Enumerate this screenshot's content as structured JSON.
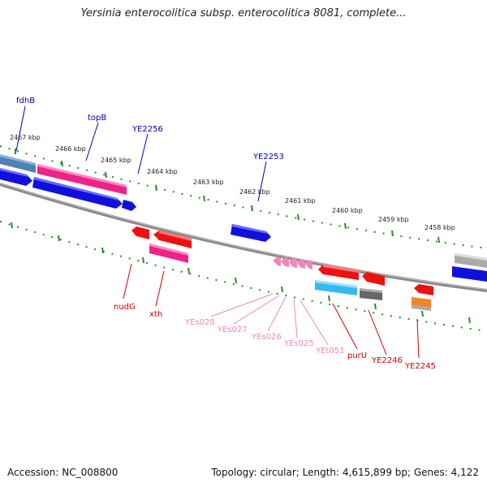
{
  "title": "Yersinia enterocolitica subsp. enterocolitica 8081, complete...",
  "footer": {
    "accession": "Accession: NC_008800",
    "topology": "Topology: circular; Length: 4,615,899 bp; Genes: 4,122"
  },
  "scale_labels": [
    "2467 kbp",
    "2466 kbp",
    "2465 kbp",
    "2464 kbp",
    "2463 kbp",
    "2462 kbp",
    "2461 kbp",
    "2460 kbp",
    "2459 kbp",
    "2458 kbp"
  ],
  "genes_forward": [
    "fdhB",
    "topB",
    "YE2256",
    "YE2253"
  ],
  "genes_reverse": [
    "nudG",
    "xth",
    "YEs028",
    "YEs027",
    "YEs026",
    "YEs025",
    "YEt051",
    "purU",
    "YE2246",
    "YE2245"
  ],
  "colors": {
    "backbone": "#888888",
    "scale_ticks": "#2a8a2a",
    "forward_label": "#0000aa",
    "reverse_label": "#cc0000",
    "srna_label": "#ee88bb",
    "blue_feature": "#1010dd",
    "red_feature": "#ee1111",
    "pink_feature": "#ee2288",
    "cyan_feature": "#33bbee",
    "gray_feature": "#777777",
    "steel_feature": "#4f82b5",
    "orange_feature": "#ee8822"
  }
}
